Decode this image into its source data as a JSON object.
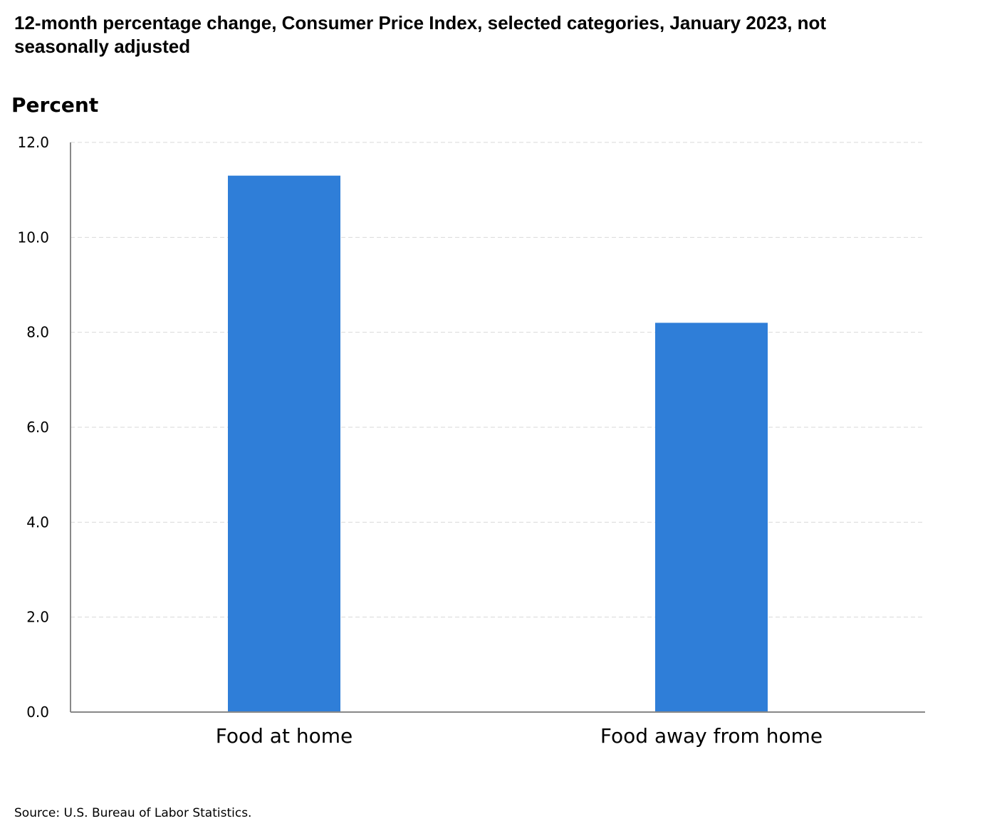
{
  "chart_data": {
    "type": "bar",
    "title": "12-month percentage change, Consumer Price Index, selected categories, January 2023, not seasonally adjusted",
    "ylabel": "Percent",
    "xlabel": "",
    "categories": [
      "Food at home",
      "Food away from home"
    ],
    "values": [
      11.3,
      8.2
    ],
    "ylim": [
      0,
      12
    ],
    "yticks": [
      "0.0",
      "2.0",
      "4.0",
      "6.0",
      "8.0",
      "10.0",
      "12.0"
    ],
    "grid": true,
    "legend": "none",
    "bar_color": "#2f7ed8"
  },
  "source": "Source: U.S. Bureau of Labor Statistics."
}
